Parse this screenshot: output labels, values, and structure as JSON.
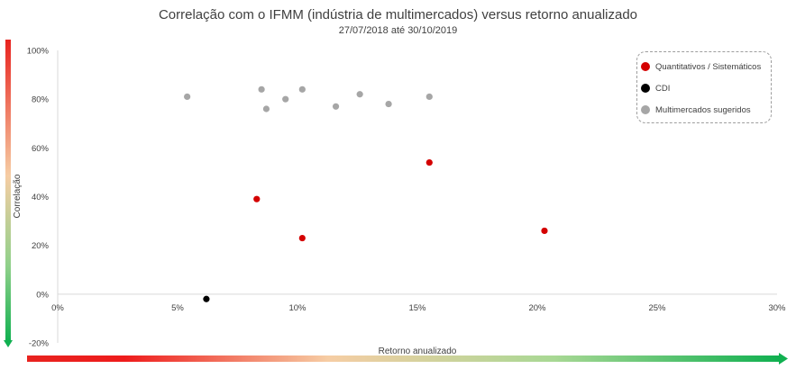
{
  "chart_data": {
    "type": "scatter",
    "title": "Correlação com o IFMM (indústria de multimercados) versus retorno anualizado",
    "subtitle": "27/07/2018 até 30/10/2019",
    "xlabel": "Retorno anualizado",
    "ylabel": "Correlação",
    "xlim": [
      0,
      0.3
    ],
    "ylim": [
      -0.2,
      1.0
    ],
    "x_ticks": [
      0,
      0.05,
      0.1,
      0.15,
      0.2,
      0.25,
      0.3
    ],
    "x_tick_labels": [
      "0%",
      "5%",
      "10%",
      "15%",
      "20%",
      "25%",
      "30%"
    ],
    "y_ticks": [
      -0.2,
      0,
      0.2,
      0.4,
      0.6,
      0.8,
      1.0
    ],
    "y_tick_labels": [
      "-20%",
      "0%",
      "20%",
      "40%",
      "60%",
      "80%",
      "100%"
    ],
    "grid": false,
    "legend_position": "top-right",
    "series": [
      {
        "name": "Quantitativos / Sistemáticos",
        "color": "#d40000",
        "points": [
          {
            "x": 0.083,
            "y": 0.39
          },
          {
            "x": 0.102,
            "y": 0.23
          },
          {
            "x": 0.155,
            "y": 0.54
          },
          {
            "x": 0.203,
            "y": 0.26
          }
        ]
      },
      {
        "name": "CDI",
        "color": "#000000",
        "points": [
          {
            "x": 0.062,
            "y": -0.02
          }
        ]
      },
      {
        "name": "Multimercados sugeridos",
        "color": "#a6a6a6",
        "points": [
          {
            "x": 0.054,
            "y": 0.81
          },
          {
            "x": 0.085,
            "y": 0.84
          },
          {
            "x": 0.087,
            "y": 0.76
          },
          {
            "x": 0.095,
            "y": 0.8
          },
          {
            "x": 0.102,
            "y": 0.84
          },
          {
            "x": 0.116,
            "y": 0.77
          },
          {
            "x": 0.126,
            "y": 0.82
          },
          {
            "x": 0.138,
            "y": 0.78
          },
          {
            "x": 0.155,
            "y": 0.81
          }
        ]
      }
    ]
  }
}
